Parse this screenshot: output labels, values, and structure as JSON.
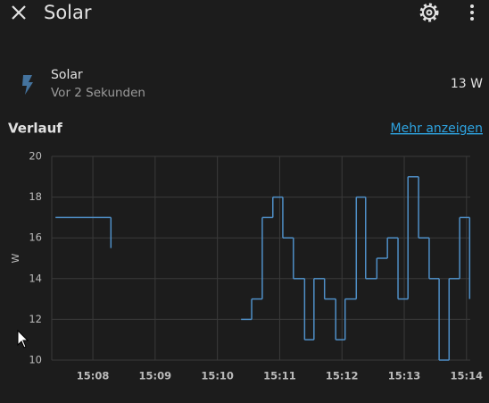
{
  "header": {
    "title": "Solar"
  },
  "entity": {
    "name": "Solar",
    "last_changed": "Vor 2 Sekunden",
    "state": "13 W"
  },
  "history": {
    "title": "Verlauf",
    "more_link": "Mehr anzeigen"
  },
  "chart_data": {
    "type": "line",
    "step": true,
    "y_label": "W",
    "color": "#4f8fc7",
    "grid": true,
    "x": [
      7.4,
      8.29,
      null,
      10.38,
      10.55,
      10.72,
      10.89,
      11.05,
      11.22,
      11.4,
      11.55,
      11.72,
      11.9,
      12.05,
      12.23,
      12.38,
      12.56,
      12.73,
      12.9,
      13.06,
      13.23,
      13.4,
      13.56,
      13.72,
      13.89,
      14.05
    ],
    "values": [
      17,
      15.5,
      null,
      12,
      13,
      17,
      18,
      16,
      14,
      11,
      14,
      13,
      11,
      13,
      18,
      14,
      15,
      16,
      13,
      19,
      16,
      14,
      10,
      14,
      17,
      13
    ],
    "xlim": [
      7.34,
      14.06
    ],
    "xticks": [
      {
        "value": 8,
        "label": "15:08"
      },
      {
        "value": 9,
        "label": "15:09"
      },
      {
        "value": 10,
        "label": "15:10"
      },
      {
        "value": 11,
        "label": "15:11"
      },
      {
        "value": 12,
        "label": "15:12"
      },
      {
        "value": 13,
        "label": "15:13"
      },
      {
        "value": 14,
        "label": "15:14"
      }
    ],
    "ylim": [
      10,
      20
    ],
    "yticks": [
      10,
      12,
      14,
      16,
      18,
      20
    ]
  }
}
